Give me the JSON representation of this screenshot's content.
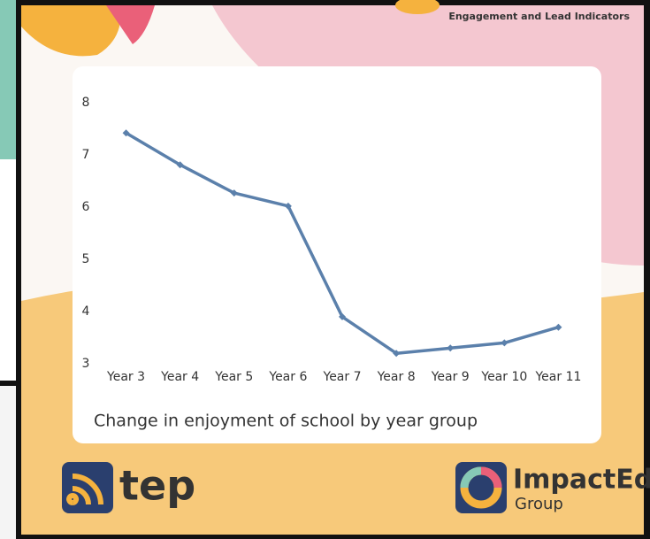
{
  "header": {
    "text": "Engagement and Lead Indicators"
  },
  "chart_data": {
    "type": "line",
    "title": "Change in enjoyment of school by year group",
    "categories": [
      "Year 3",
      "Year 4",
      "Year 5",
      "Year 6",
      "Year 7",
      "Year 8",
      "Year 9",
      "Year 10",
      "Year 11"
    ],
    "values": [
      7.42,
      6.81,
      6.27,
      6.02,
      3.9,
      3.2,
      3.3,
      3.4,
      3.7
    ],
    "color": "#5b80ab",
    "ylim": [
      3,
      8
    ],
    "yticks": [
      3,
      4,
      5,
      6,
      7,
      8
    ],
    "grid": false
  },
  "logos": {
    "left": "tep",
    "right": "ImpactEd",
    "right_sub": "Group"
  }
}
